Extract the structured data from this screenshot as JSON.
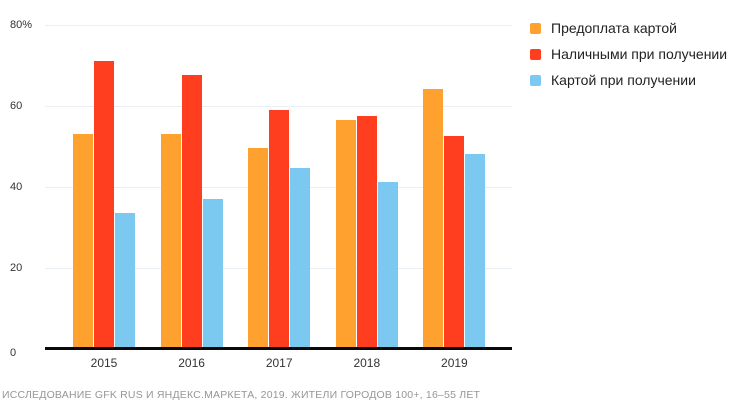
{
  "chart_data": {
    "type": "bar",
    "categories": [
      "2015",
      "2016",
      "2017",
      "2018",
      "2019"
    ],
    "series": [
      {
        "name": "Предоплата картой",
        "color": "#FFA12E",
        "values": [
          53,
          53,
          49.5,
          56.5,
          64
        ]
      },
      {
        "name": "Наличными при получении",
        "color": "#FF3D1F",
        "values": [
          71,
          67.5,
          59,
          57.5,
          52.5
        ]
      },
      {
        "name": "Картой при получении",
        "color": "#7BC9F0",
        "values": [
          33.5,
          37,
          44.5,
          41,
          48
        ]
      }
    ],
    "title": "",
    "xlabel": "",
    "ylabel": "",
    "ylim": [
      0,
      80
    ],
    "y_ticks": [
      {
        "value": 80,
        "label": "80%"
      },
      {
        "value": 60,
        "label": "60"
      },
      {
        "value": 40,
        "label": "40"
      },
      {
        "value": 20,
        "label": "20"
      },
      {
        "value": 0,
        "label": "0"
      }
    ],
    "grid": "horizontal",
    "legend_position": "top-right"
  },
  "footer": {
    "text": "ИССЛЕДОВАНИЕ GFK RUS И ЯНДЕКС.МАРКЕТА, 2019. ЖИТЕЛИ ГОРОДОВ 100+, 16–55 ЛЕТ"
  },
  "colors": {
    "background": "#ffffff",
    "gridline": "#e9eff3",
    "axis_line": "#0a0a0a",
    "tick_text": "#333333",
    "legend_text": "#222222",
    "footer_text": "#969696"
  }
}
